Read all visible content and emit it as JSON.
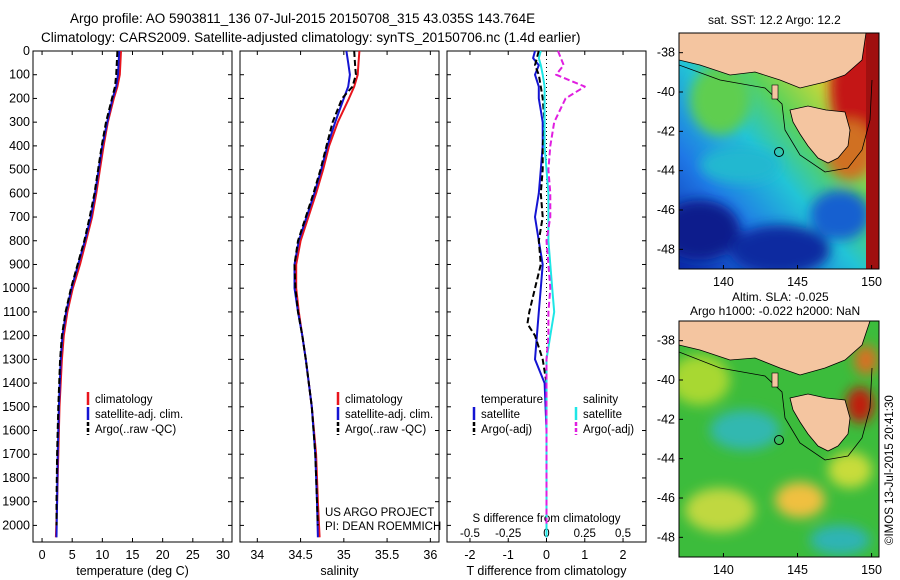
{
  "header": {
    "title_line1": "Argo profile: AO 5903811_136 07-Jul-2015 20150708_315 43.035S 143.764E",
    "title_line2": "Climatology: CARS2009. Satellite-adjusted climatology: synTS_20150706.nc (1.4d earlier)"
  },
  "colors": {
    "climatology": "#e8141c",
    "satellite": "#1414d2",
    "argo": "#000000",
    "satellite_s": "#1ee6e6",
    "argo_s": "#e01ee0"
  },
  "depth_axis": {
    "ticks": [
      0,
      100,
      200,
      300,
      400,
      500,
      600,
      700,
      800,
      900,
      1000,
      1100,
      1200,
      1300,
      1400,
      1500,
      1600,
      1700,
      1800,
      1900,
      2000
    ],
    "range": [
      0,
      2070
    ]
  },
  "chart_data": [
    {
      "type": "line",
      "xlabel": "temperature (deg C)",
      "xlim": [
        -1.5,
        31.5
      ],
      "xticks": [
        0,
        5,
        10,
        15,
        20,
        25,
        30
      ],
      "legend": [
        "climatology",
        "satellite-adj. clim.",
        "Argo(..raw -QC)"
      ],
      "series": [
        {
          "name": "climatology",
          "color": "#e8141c",
          "style": "solid",
          "depth": [
            0,
            50,
            100,
            150,
            200,
            300,
            400,
            500,
            600,
            700,
            800,
            900,
            1000,
            1100,
            1200,
            1300,
            1500,
            1700,
            1900,
            2050
          ],
          "values": [
            13.1,
            13.0,
            12.9,
            12.5,
            11.9,
            10.9,
            10.2,
            9.6,
            9.0,
            8.3,
            7.3,
            6.3,
            5.1,
            4.2,
            3.6,
            3.3,
            2.9,
            2.7,
            2.5,
            2.3
          ]
        },
        {
          "name": "satellite-adj. clim.",
          "color": "#1414d2",
          "style": "solid",
          "depth": [
            0,
            50,
            100,
            150,
            200,
            300,
            400,
            500,
            600,
            700,
            800,
            900,
            1000,
            1100,
            1200,
            1300,
            1500,
            1700,
            1900,
            2050
          ],
          "values": [
            12.8,
            12.7,
            12.6,
            12.3,
            11.7,
            10.8,
            10.0,
            9.4,
            8.8,
            8.1,
            7.1,
            6.0,
            4.9,
            4.0,
            3.4,
            3.1,
            2.8,
            2.6,
            2.5,
            2.4
          ]
        },
        {
          "name": "Argo(..raw -QC)",
          "color": "#000000",
          "style": "dashed",
          "depth": [
            0,
            50,
            100,
            150,
            200,
            300,
            400,
            500,
            600,
            700,
            800,
            900,
            1000,
            1100,
            1200,
            1300,
            1500,
            1700,
            1900,
            2000
          ],
          "values": [
            12.5,
            12.4,
            12.3,
            12.1,
            11.6,
            10.6,
            9.9,
            9.3,
            8.7,
            7.9,
            7.0,
            5.9,
            4.8,
            3.9,
            3.3,
            3.0,
            2.7,
            2.5,
            2.4,
            2.4
          ]
        }
      ]
    },
    {
      "type": "line",
      "xlabel": "salinity",
      "xlim": [
        33.8,
        36.1
      ],
      "xticks": [
        34,
        34.5,
        35,
        35.5,
        36
      ],
      "legend": [
        "climatology",
        "satellite-adj. clim.",
        "Argo(..raw -QC)"
      ],
      "annotation": [
        "US ARGO PROJECT",
        "PI: DEAN ROEMMICH"
      ],
      "series": [
        {
          "name": "climatology",
          "color": "#e8141c",
          "style": "solid",
          "depth": [
            0,
            50,
            100,
            150,
            200,
            300,
            400,
            500,
            600,
            700,
            800,
            900,
            1000,
            1100,
            1200,
            1300,
            1500,
            1700,
            1900,
            2050
          ],
          "values": [
            35.18,
            35.17,
            35.16,
            35.12,
            35.06,
            34.93,
            34.83,
            34.76,
            34.68,
            34.59,
            34.5,
            34.45,
            34.45,
            34.48,
            34.52,
            34.56,
            34.63,
            34.68,
            34.7,
            34.72
          ]
        },
        {
          "name": "satellite-adj. clim.",
          "color": "#1414d2",
          "style": "solid",
          "depth": [
            0,
            50,
            100,
            150,
            200,
            300,
            400,
            500,
            600,
            700,
            800,
            900,
            1000,
            1100,
            1200,
            1300,
            1500,
            1700,
            1900,
            2050
          ],
          "values": [
            35.03,
            35.05,
            35.07,
            35.05,
            35.0,
            34.9,
            34.81,
            34.74,
            34.66,
            34.57,
            34.48,
            34.43,
            34.43,
            34.47,
            34.52,
            34.56,
            34.63,
            34.67,
            34.69,
            34.7
          ]
        },
        {
          "name": "Argo(..raw -QC)",
          "color": "#000000",
          "style": "dashed",
          "depth": [
            0,
            60,
            100,
            150,
            200,
            300,
            400,
            500,
            600,
            700,
            800,
            900,
            1000,
            1100,
            1200,
            1300,
            1500,
            1700,
            1900,
            2000
          ],
          "values": [
            35.12,
            35.13,
            35.14,
            35.1,
            34.98,
            34.87,
            34.8,
            34.73,
            34.65,
            34.56,
            34.47,
            34.43,
            34.44,
            34.47,
            34.52,
            34.56,
            34.63,
            34.67,
            34.69,
            34.7
          ]
        }
      ]
    },
    {
      "type": "line",
      "xlabel": "T difference from climatology",
      "xlabel_top": "S difference from climatology",
      "xlim": [
        -2.6,
        2.6
      ],
      "xticks": [
        -2,
        -1,
        0,
        1,
        2
      ],
      "xticks_top": [
        "-0.5",
        "-0.25",
        "0",
        "0.25",
        "0.5"
      ],
      "legend_t": [
        "temperature",
        "satellite",
        "Argo(-adj)"
      ],
      "legend_s": [
        "salinity",
        "satellite",
        "Argo(-adj)"
      ],
      "series": [
        {
          "name": "satellite",
          "color": "#1414d2",
          "style": "solid",
          "depth": [
            0,
            30,
            60,
            100,
            150,
            200,
            250,
            300,
            400,
            500,
            600,
            700,
            800,
            900,
            1000,
            1100,
            1200,
            1300,
            1400,
            1600,
            1800,
            2050
          ],
          "values": [
            -0.3,
            -0.35,
            -0.2,
            -0.3,
            -0.2,
            -0.2,
            -0.15,
            -0.1,
            -0.1,
            -0.15,
            -0.2,
            -0.3,
            -0.2,
            -0.1,
            -0.15,
            -0.2,
            -0.25,
            -0.3,
            -0.05,
            0.0,
            0.0,
            0.0
          ]
        },
        {
          "name": "Argo(-adj)",
          "color": "#000000",
          "style": "dashed",
          "depth": [
            0,
            30,
            60,
            100,
            150,
            200,
            300,
            400,
            500,
            600,
            700,
            800,
            900,
            1000,
            1100,
            1150,
            1200,
            1300,
            1400,
            1600,
            1800,
            2000
          ],
          "values": [
            -0.2,
            -0.25,
            -0.3,
            -0.2,
            -0.15,
            -0.1,
            -0.05,
            -0.1,
            -0.1,
            -0.15,
            -0.1,
            -0.2,
            -0.15,
            -0.3,
            -0.45,
            -0.5,
            -0.3,
            -0.1,
            0.0,
            0.0,
            0.0,
            0.0
          ]
        },
        {
          "name": "satellite",
          "color": "#1ee6e6",
          "style": "solid",
          "depth": [
            0,
            30,
            60,
            100,
            150,
            200,
            300,
            400,
            500,
            600,
            700,
            800,
            900,
            1000,
            1100,
            1200,
            1300,
            1400,
            1600,
            1800,
            2050
          ],
          "values": [
            -0.15,
            -0.2,
            -0.15,
            -0.1,
            -0.05,
            -0.05,
            -0.05,
            -0.05,
            0.0,
            0.05,
            0.05,
            0.05,
            0.1,
            0.15,
            0.2,
            0.1,
            0.0,
            0.0,
            0.0,
            0.0,
            0.0
          ]
        },
        {
          "name": "Argo(-adj)",
          "color": "#e01ee0",
          "style": "dashed",
          "depth": [
            0,
            60,
            100,
            150,
            200,
            300,
            400,
            500,
            600,
            700,
            800,
            900,
            1000,
            1100,
            1200,
            1300,
            1400,
            1600,
            1800,
            2000
          ],
          "values": [
            0.3,
            0.45,
            0.25,
            1.0,
            0.5,
            0.2,
            0.1,
            0.05,
            0.1,
            0.1,
            0.0,
            0.05,
            0.1,
            0.05,
            0.05,
            0.0,
            0.0,
            0.0,
            0.0,
            0.0
          ]
        }
      ]
    },
    {
      "type": "heatmap",
      "title": "sat. SST: 12.2 Argo: 12.2",
      "xticks": [
        140,
        145,
        150
      ],
      "yticks": [
        -38,
        -40,
        -42,
        -44,
        -46,
        -48
      ],
      "xlim": [
        137,
        150.5
      ],
      "ylim": [
        -49,
        -37
      ]
    },
    {
      "type": "heatmap",
      "title": "Altim. SLA: -0.025",
      "subtitle": "Argo h1000: -0.022 h2000: NaN",
      "xticks": [
        140,
        145,
        150
      ],
      "yticks": [
        -38,
        -40,
        -42,
        -44,
        -46,
        -48
      ],
      "xlim": [
        137,
        150.5
      ],
      "ylim": [
        -49,
        -37
      ]
    }
  ],
  "credit": "©IMOS 13-Jul-2015 20:41:30"
}
